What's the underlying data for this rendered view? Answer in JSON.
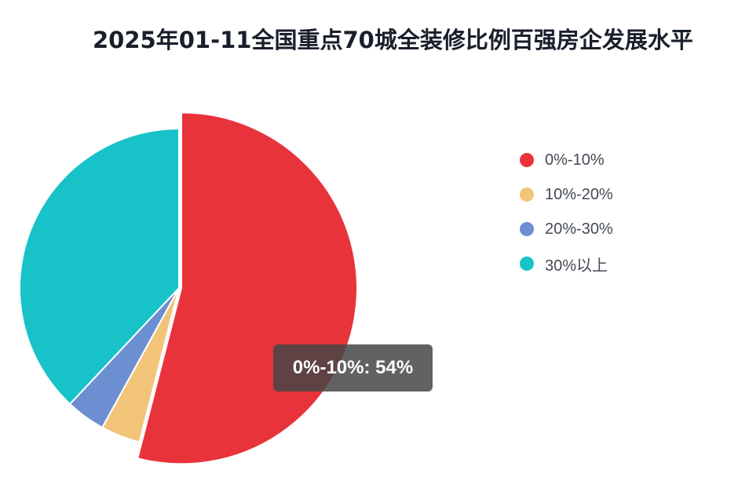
{
  "title": "2025年01-11全国重点70城全装修比例百强房企发展水平",
  "chart_data": {
    "type": "pie",
    "categories": [
      "0%-10%",
      "10%-20%",
      "20%-30%",
      "30%以上"
    ],
    "values": [
      54,
      4,
      4,
      38
    ],
    "colors": [
      "#e8333a",
      "#f2c47a",
      "#6c8fd2",
      "#18c2c9"
    ],
    "legend_position": "right",
    "highlighted_index": 0
  },
  "tooltip": {
    "text": "0%-10%: 54%"
  }
}
